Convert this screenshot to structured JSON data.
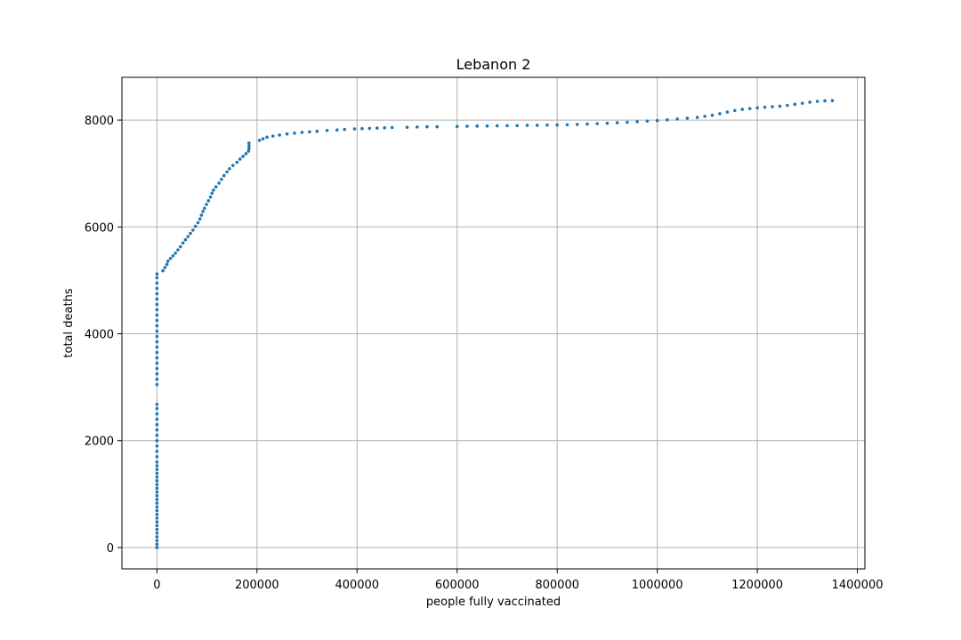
{
  "chart_data": {
    "type": "scatter",
    "title": "Lebanon 2",
    "xlabel": "people fully vaccinated",
    "ylabel": "total deaths",
    "xlim": [
      -70000,
      1415000
    ],
    "ylim": [
      -400,
      8800
    ],
    "xticks": [
      0,
      200000,
      400000,
      600000,
      800000,
      1000000,
      1200000,
      1400000
    ],
    "yticks": [
      0,
      2000,
      4000,
      6000,
      8000
    ],
    "grid": true,
    "color": "#1f77b4",
    "series": [
      {
        "points": [
          [
            0,
            0
          ],
          [
            0,
            60
          ],
          [
            0,
            130
          ],
          [
            0,
            200
          ],
          [
            0,
            270
          ],
          [
            0,
            340
          ],
          [
            0,
            410
          ],
          [
            0,
            480
          ],
          [
            0,
            550
          ],
          [
            0,
            620
          ],
          [
            0,
            690
          ],
          [
            0,
            760
          ],
          [
            0,
            830
          ],
          [
            0,
            900
          ],
          [
            0,
            970
          ],
          [
            0,
            1040
          ],
          [
            0,
            1110
          ],
          [
            0,
            1180
          ],
          [
            0,
            1250
          ],
          [
            0,
            1320
          ],
          [
            0,
            1390
          ],
          [
            0,
            1460
          ],
          [
            0,
            1530
          ],
          [
            0,
            1600
          ],
          [
            0,
            1700
          ],
          [
            0,
            1800
          ],
          [
            0,
            1900
          ],
          [
            0,
            2000
          ],
          [
            0,
            2100
          ],
          [
            0,
            2200
          ],
          [
            0,
            2300
          ],
          [
            0,
            2400
          ],
          [
            0,
            2500
          ],
          [
            0,
            2600
          ],
          [
            0,
            2680
          ],
          [
            0,
            3050
          ],
          [
            0,
            3150
          ],
          [
            0,
            3250
          ],
          [
            0,
            3350
          ],
          [
            0,
            3450
          ],
          [
            0,
            3550
          ],
          [
            0,
            3650
          ],
          [
            0,
            3750
          ],
          [
            0,
            3850
          ],
          [
            0,
            3950
          ],
          [
            0,
            4050
          ],
          [
            0,
            4150
          ],
          [
            0,
            4250
          ],
          [
            0,
            4350
          ],
          [
            0,
            4450
          ],
          [
            0,
            4550
          ],
          [
            0,
            4650
          ],
          [
            0,
            4750
          ],
          [
            0,
            4850
          ],
          [
            0,
            4950
          ],
          [
            0,
            5050
          ],
          [
            0,
            5120
          ],
          [
            12000,
            5180
          ],
          [
            16000,
            5240
          ],
          [
            20000,
            5300
          ],
          [
            22000,
            5360
          ],
          [
            27000,
            5410
          ],
          [
            32000,
            5460
          ],
          [
            37000,
            5510
          ],
          [
            42000,
            5570
          ],
          [
            47000,
            5630
          ],
          [
            52000,
            5700
          ],
          [
            57000,
            5760
          ],
          [
            62000,
            5820
          ],
          [
            67000,
            5880
          ],
          [
            72000,
            5940
          ],
          [
            77000,
            6010
          ],
          [
            82000,
            6080
          ],
          [
            86000,
            6150
          ],
          [
            89000,
            6220
          ],
          [
            92000,
            6290
          ],
          [
            95000,
            6350
          ],
          [
            99000,
            6420
          ],
          [
            103000,
            6490
          ],
          [
            107000,
            6560
          ],
          [
            110000,
            6630
          ],
          [
            113000,
            6690
          ],
          [
            118000,
            6750
          ],
          [
            124000,
            6820
          ],
          [
            129000,
            6890
          ],
          [
            134000,
            6960
          ],
          [
            140000,
            7030
          ],
          [
            145000,
            7090
          ],
          [
            152000,
            7150
          ],
          [
            160000,
            7210
          ],
          [
            166000,
            7270
          ],
          [
            172000,
            7320
          ],
          [
            178000,
            7370
          ],
          [
            183000,
            7420
          ],
          [
            184000,
            7470
          ],
          [
            184000,
            7520
          ],
          [
            184000,
            7570
          ],
          [
            205000,
            7620
          ],
          [
            212000,
            7650
          ],
          [
            220000,
            7680
          ],
          [
            232000,
            7700
          ],
          [
            245000,
            7720
          ],
          [
            260000,
            7740
          ],
          [
            275000,
            7755
          ],
          [
            290000,
            7770
          ],
          [
            305000,
            7780
          ],
          [
            320000,
            7790
          ],
          [
            340000,
            7805
          ],
          [
            360000,
            7815
          ],
          [
            375000,
            7825
          ],
          [
            395000,
            7835
          ],
          [
            410000,
            7840
          ],
          [
            425000,
            7845
          ],
          [
            440000,
            7850
          ],
          [
            455000,
            7855
          ],
          [
            470000,
            7860
          ],
          [
            500000,
            7865
          ],
          [
            520000,
            7870
          ],
          [
            540000,
            7875
          ],
          [
            560000,
            7875
          ],
          [
            600000,
            7880
          ],
          [
            620000,
            7885
          ],
          [
            640000,
            7888
          ],
          [
            660000,
            7890
          ],
          [
            680000,
            7892
          ],
          [
            700000,
            7895
          ],
          [
            720000,
            7897
          ],
          [
            740000,
            7900
          ],
          [
            760000,
            7902
          ],
          [
            780000,
            7905
          ],
          [
            800000,
            7908
          ],
          [
            820000,
            7912
          ],
          [
            840000,
            7918
          ],
          [
            860000,
            7925
          ],
          [
            880000,
            7932
          ],
          [
            900000,
            7940
          ],
          [
            920000,
            7950
          ],
          [
            940000,
            7960
          ],
          [
            960000,
            7970
          ],
          [
            980000,
            7980
          ],
          [
            1000000,
            7990
          ],
          [
            1020000,
            8005
          ],
          [
            1040000,
            8020
          ],
          [
            1060000,
            8035
          ],
          [
            1080000,
            8050
          ],
          [
            1095000,
            8070
          ],
          [
            1110000,
            8090
          ],
          [
            1125000,
            8120
          ],
          [
            1140000,
            8150
          ],
          [
            1155000,
            8180
          ],
          [
            1170000,
            8200
          ],
          [
            1185000,
            8215
          ],
          [
            1200000,
            8230
          ],
          [
            1215000,
            8240
          ],
          [
            1230000,
            8250
          ],
          [
            1245000,
            8260
          ],
          [
            1260000,
            8275
          ],
          [
            1275000,
            8295
          ],
          [
            1290000,
            8315
          ],
          [
            1305000,
            8335
          ],
          [
            1320000,
            8350
          ],
          [
            1335000,
            8360
          ],
          [
            1350000,
            8365
          ]
        ]
      }
    ]
  }
}
